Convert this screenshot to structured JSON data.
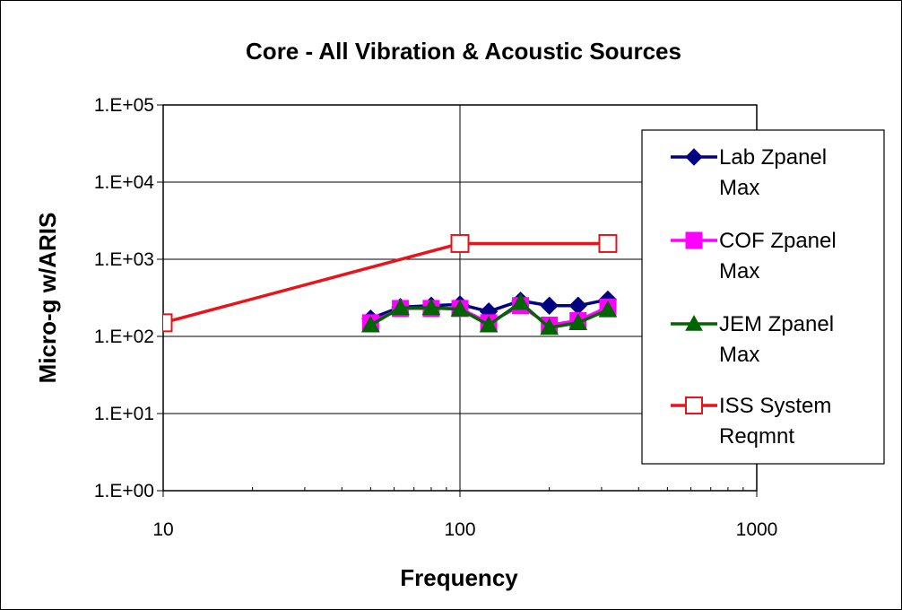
{
  "chart_data": {
    "type": "line",
    "title": "Core - All Vibration & Acoustic Sources",
    "xlabel": "Frequency",
    "ylabel": "Micro-g w/ARIS",
    "xscale": "log",
    "yscale": "log",
    "xlim": [
      10,
      1000
    ],
    "ylim": [
      1,
      100000
    ],
    "x_ticks": [
      "10",
      "100",
      "1000"
    ],
    "y_ticks": [
      "1.E+00",
      "1.E+01",
      "1.E+02",
      "1.E+03",
      "1.E+04",
      "1.E+05"
    ],
    "grid": "major",
    "legend_position": "right",
    "series": [
      {
        "name": "Lab Zpanel Max",
        "color": "#000080",
        "marker": "diamond",
        "x": [
          50,
          63,
          80,
          100,
          125,
          160,
          200,
          250,
          315
        ],
        "y": [
          170,
          240,
          250,
          260,
          210,
          290,
          250,
          250,
          300
        ]
      },
      {
        "name": "COF Zpanel Max",
        "color": "#FF00FF",
        "marker": "square",
        "x": [
          50,
          63,
          80,
          100,
          125,
          160,
          200,
          250,
          315
        ],
        "y": [
          150,
          230,
          230,
          230,
          150,
          250,
          140,
          160,
          240
        ]
      },
      {
        "name": "JEM Zpanel Max",
        "color": "#006400",
        "marker": "triangle",
        "x": [
          50,
          63,
          80,
          100,
          125,
          160,
          200,
          250,
          315
        ],
        "y": [
          140,
          235,
          235,
          225,
          140,
          275,
          130,
          150,
          220
        ]
      },
      {
        "name": "ISS System Reqmnt",
        "color": "#E8141A",
        "marker": "open-square",
        "x": [
          10,
          100,
          315
        ],
        "y": [
          150,
          1600,
          1600
        ]
      }
    ]
  },
  "legend_lines": [
    [
      "Lab Zpanel",
      "Max"
    ],
    [
      "COF Zpanel",
      "Max"
    ],
    [
      "JEM Zpanel",
      "Max"
    ],
    [
      "ISS System",
      "Reqmnt"
    ]
  ]
}
